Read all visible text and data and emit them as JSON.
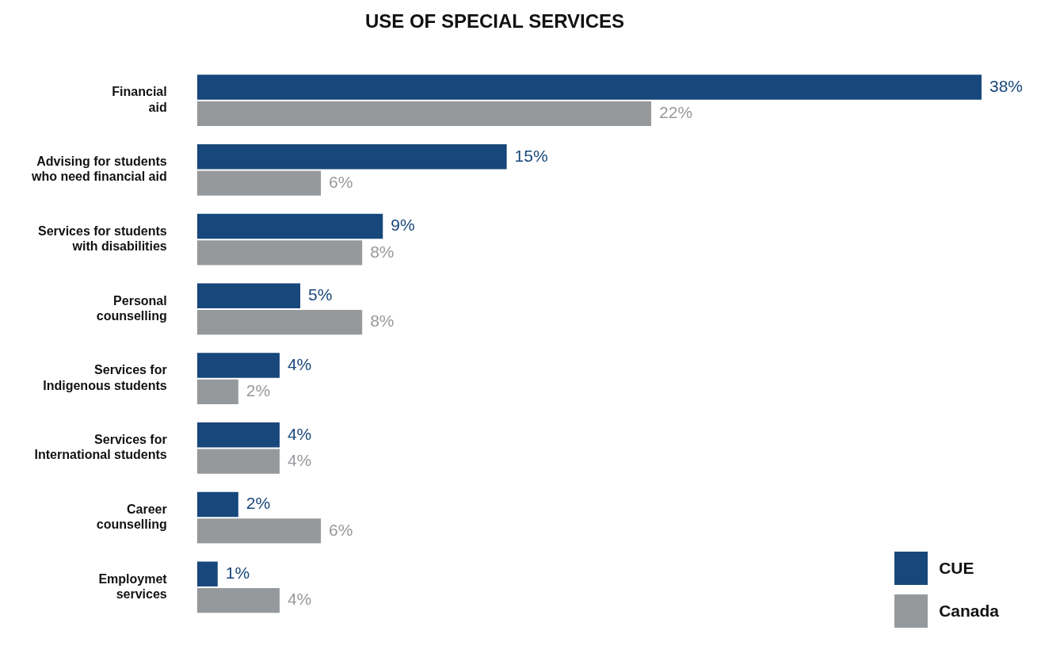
{
  "chart_data": {
    "type": "bar",
    "orientation": "horizontal",
    "title": "USE OF SPECIAL SERVICES",
    "categories": [
      "Financial aid",
      "Advising for students who need financial aid",
      "Services for students with disabilities",
      "Personal counselling",
      "Services for Indigenous students",
      "Services for International students",
      "Career counselling",
      "Employmet services"
    ],
    "series": [
      {
        "name": "CUE",
        "color": "#17477b",
        "values": [
          38,
          15,
          9,
          5,
          4,
          4,
          2,
          1
        ],
        "value_labels": [
          "38%",
          "15%",
          "9%",
          "5%",
          "4%",
          "4%",
          "2%",
          "1%"
        ]
      },
      {
        "name": "Canada",
        "color": "#96999c",
        "values": [
          22,
          6,
          8,
          8,
          2,
          4,
          6,
          4
        ],
        "value_labels": [
          "22%",
          "6%",
          "8%",
          "8%",
          "2%",
          "4%",
          "6%",
          "4%"
        ]
      }
    ],
    "grid": false,
    "legend": "bottom right"
  }
}
